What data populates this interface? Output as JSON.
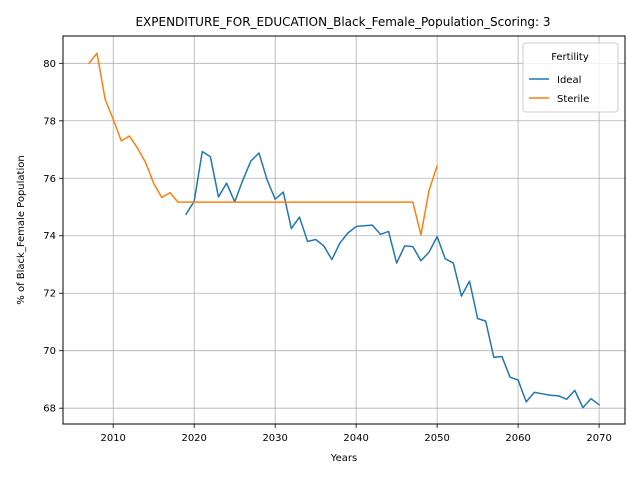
{
  "chart_data": {
    "type": "line",
    "title": "EXPENDITURE_FOR_EDUCATION_Black_Female_Population_Scoring: 3",
    "xlabel": "Years",
    "ylabel": "% of Black_Female Population",
    "xlim": [
      2003.8,
      2073.2
    ],
    "ylim": [
      67.45,
      80.95
    ],
    "x_ticks": [
      2010,
      2020,
      2030,
      2040,
      2050,
      2060,
      2070
    ],
    "y_ticks": [
      68,
      70,
      72,
      74,
      76,
      78,
      80
    ],
    "grid": true,
    "legend": {
      "title": "Fertility",
      "position": "top-right"
    },
    "series": [
      {
        "name": "Ideal",
        "color": "#1f77b4",
        "points": [
          [
            2019,
            74.75
          ],
          [
            2020,
            75.2
          ],
          [
            2021,
            76.93
          ],
          [
            2022,
            76.75
          ],
          [
            2023,
            75.35
          ],
          [
            2024,
            75.83
          ],
          [
            2025,
            75.18
          ],
          [
            2026,
            75.93
          ],
          [
            2027,
            76.6
          ],
          [
            2028,
            76.88
          ],
          [
            2029,
            75.95
          ],
          [
            2030,
            75.27
          ],
          [
            2031,
            75.52
          ],
          [
            2032,
            74.25
          ],
          [
            2033,
            74.65
          ],
          [
            2034,
            73.8
          ],
          [
            2035,
            73.87
          ],
          [
            2036,
            73.65
          ],
          [
            2037,
            73.17
          ],
          [
            2038,
            73.75
          ],
          [
            2039,
            74.1
          ],
          [
            2040,
            74.32
          ],
          [
            2041,
            74.35
          ],
          [
            2042,
            74.37
          ],
          [
            2043,
            74.05
          ],
          [
            2044,
            74.15
          ],
          [
            2045,
            73.05
          ],
          [
            2046,
            73.65
          ],
          [
            2047,
            73.62
          ],
          [
            2048,
            73.13
          ],
          [
            2049,
            73.43
          ],
          [
            2050,
            73.97
          ],
          [
            2051,
            73.2
          ],
          [
            2052,
            73.05
          ],
          [
            2053,
            71.9
          ],
          [
            2054,
            72.42
          ],
          [
            2055,
            71.12
          ],
          [
            2056,
            71.03
          ],
          [
            2057,
            69.77
          ],
          [
            2058,
            69.8
          ],
          [
            2059,
            69.08
          ],
          [
            2060,
            68.98
          ],
          [
            2061,
            68.22
          ],
          [
            2062,
            68.55
          ],
          [
            2063,
            68.5
          ],
          [
            2064,
            68.45
          ],
          [
            2065,
            68.43
          ],
          [
            2066,
            68.31
          ],
          [
            2067,
            68.62
          ],
          [
            2068,
            68.02
          ],
          [
            2069,
            68.33
          ],
          [
            2070,
            68.12
          ]
        ]
      },
      {
        "name": "Sterile",
        "color": "#ff7f0e",
        "points": [
          [
            2007,
            80.0
          ],
          [
            2008,
            80.35
          ],
          [
            2009,
            78.75
          ],
          [
            2010,
            78.05
          ],
          [
            2011,
            77.3
          ],
          [
            2012,
            77.47
          ],
          [
            2013,
            77.05
          ],
          [
            2014,
            76.55
          ],
          [
            2015,
            75.82
          ],
          [
            2016,
            75.33
          ],
          [
            2017,
            75.5
          ],
          [
            2018,
            75.17
          ],
          [
            2019,
            75.17
          ],
          [
            2020,
            75.17
          ],
          [
            2030,
            75.17
          ],
          [
            2040,
            75.17
          ],
          [
            2047,
            75.17
          ],
          [
            2048,
            74.03
          ],
          [
            2049,
            75.58
          ],
          [
            2050,
            76.43
          ]
        ]
      }
    ]
  }
}
